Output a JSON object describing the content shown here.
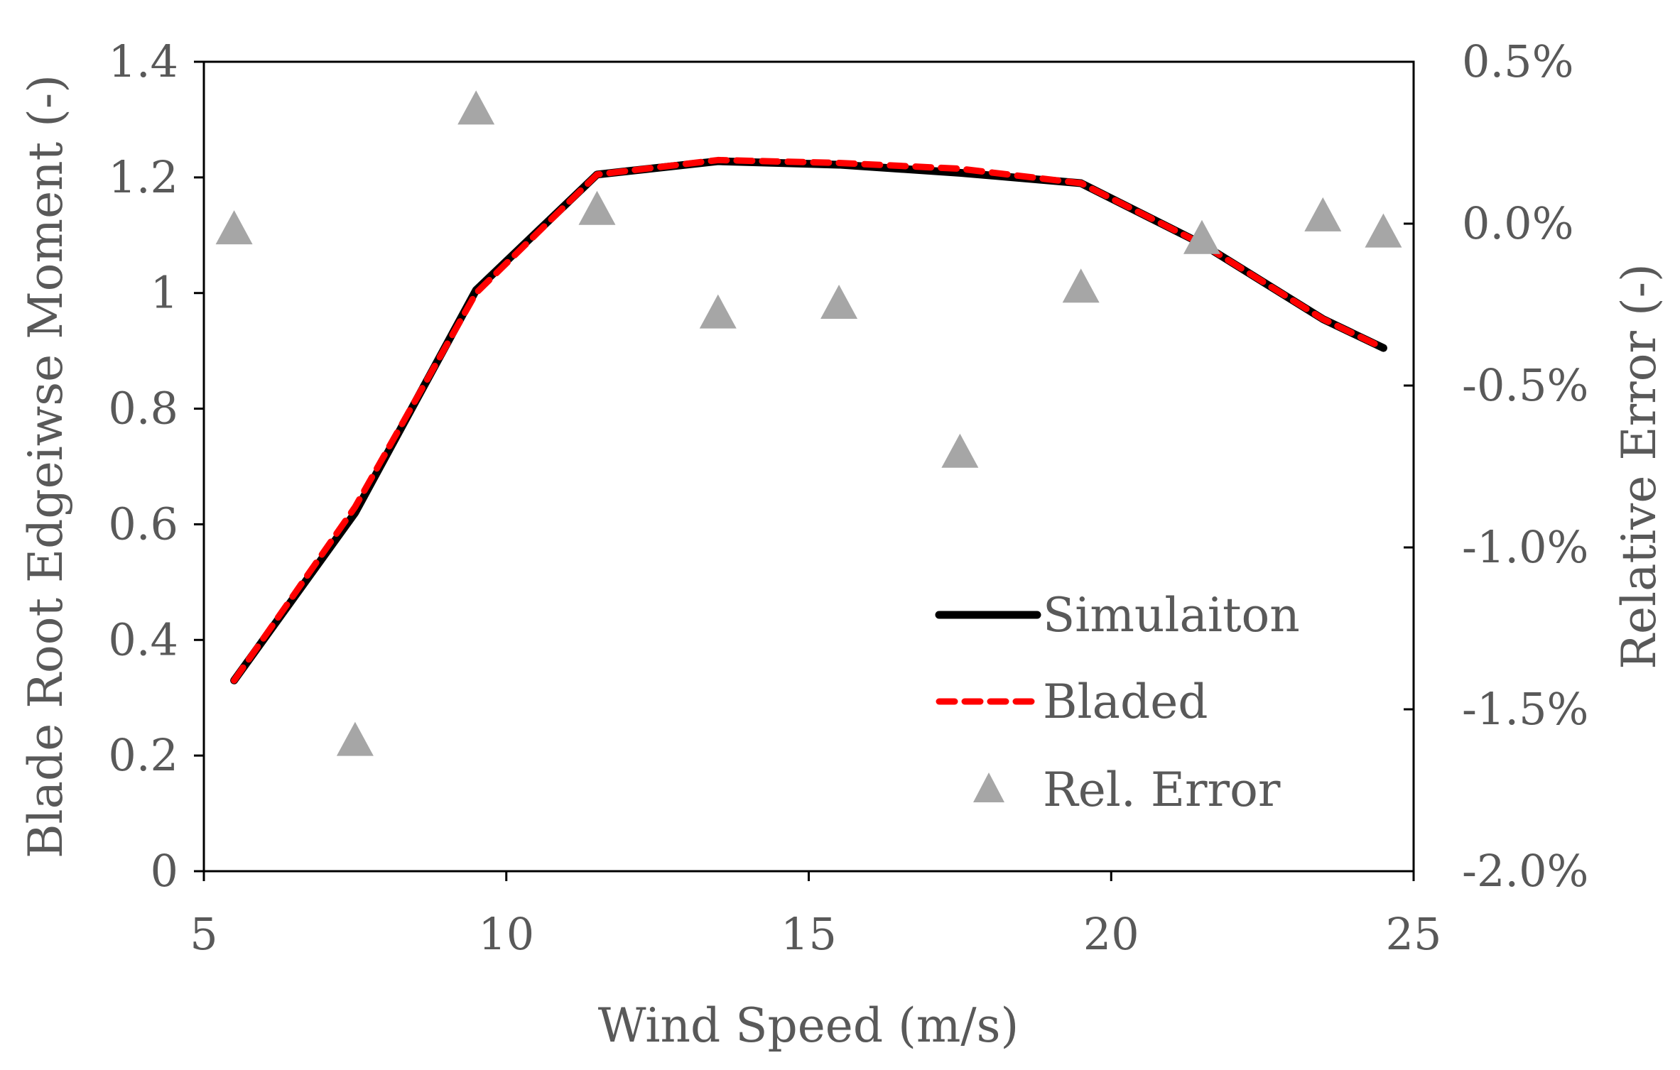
{
  "chart_data": {
    "type": "line",
    "title": "",
    "xlabel": "Wind Speed (m/s)",
    "ylabel": "Blade Root Edgeiwse Moment (-)",
    "y2label": "Relative Error (-)",
    "xlim": [
      5,
      25
    ],
    "ylim": [
      0,
      1.4
    ],
    "y2lim": [
      -2.0,
      0.5
    ],
    "xticks": [
      5,
      10,
      15,
      20,
      25
    ],
    "yticks": [
      0,
      0.2,
      0.4,
      0.6,
      0.8,
      1,
      1.2,
      1.4
    ],
    "yticklabels": [
      "0",
      "0.2",
      "0.4",
      "0.6",
      "0.8",
      "1",
      "1.2",
      "1.4"
    ],
    "y2ticks": [
      0.5,
      0.0,
      -0.5,
      -1.0,
      -1.5,
      -2.0
    ],
    "y2ticklabels": [
      "0.5%",
      "0.0%",
      "-0.5%",
      "-1.0%",
      "-1.5%",
      "-2.0%"
    ],
    "grid": false,
    "legend_position": "bottom-right",
    "series": [
      {
        "name": "Simulaiton",
        "style": "solid",
        "color": "#000000",
        "axis": "left",
        "x": [
          5.5,
          7.5,
          9.5,
          11.5,
          13.5,
          15.5,
          17.5,
          19.5,
          21.5,
          23.5,
          24.5
        ],
        "values": [
          0.33,
          0.62,
          1.005,
          1.205,
          1.228,
          1.222,
          1.208,
          1.19,
          1.085,
          0.955,
          0.905
        ]
      },
      {
        "name": "Bladed",
        "style": "dashed",
        "color": "#ff0000",
        "axis": "left",
        "x": [
          5.5,
          7.5,
          9.5,
          11.5,
          13.5,
          15.5,
          17.5,
          19.5,
          21.5,
          23.5,
          24.5
        ],
        "values": [
          0.33,
          0.63,
          1.0,
          1.205,
          1.23,
          1.225,
          1.215,
          1.19,
          1.085,
          0.955,
          0.905
        ]
      },
      {
        "name": "Rel. Error",
        "style": "marker-triangle",
        "color": "#a6a6a6",
        "axis": "right",
        "x": [
          5.5,
          7.5,
          9.5,
          11.5,
          13.5,
          15.5,
          17.5,
          19.5,
          21.5,
          23.5,
          24.5
        ],
        "values": [
          -0.02,
          -1.6,
          0.35,
          0.04,
          -0.28,
          -0.25,
          -0.71,
          -0.2,
          -0.05,
          0.02,
          -0.03
        ]
      }
    ]
  }
}
